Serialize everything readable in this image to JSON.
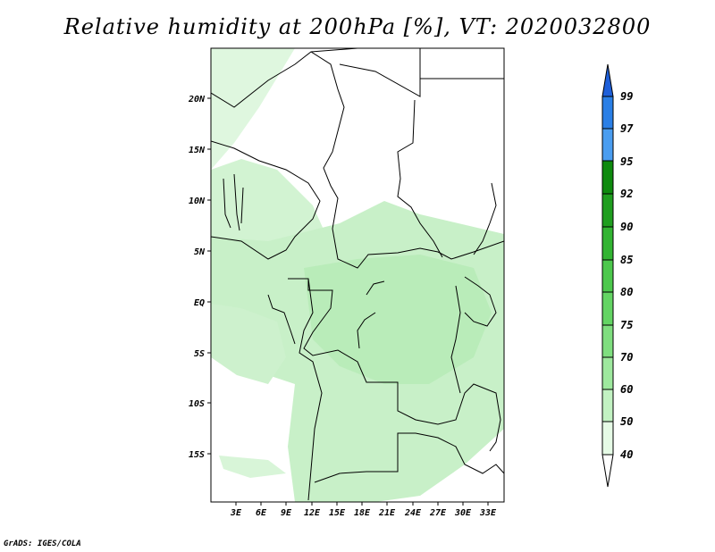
{
  "title": "Relative humidity at 200hPa [%], VT: 2020032800",
  "credit": "GrADS: IGES/COLA",
  "map": {
    "region": "Central Africa",
    "lat_labels": [
      "20N",
      "15N",
      "10N",
      "5N",
      "EQ",
      "5S",
      "10S",
      "15S"
    ],
    "lon_labels": [
      "3E",
      "6E",
      "9E",
      "12E",
      "15E",
      "18E",
      "21E",
      "24E",
      "27E",
      "30E",
      "33E"
    ]
  },
  "colorbar": {
    "labels": [
      "99",
      "97",
      "95",
      "92",
      "90",
      "85",
      "80",
      "75",
      "70",
      "60",
      "50",
      "40"
    ],
    "colors": [
      "#1e5fd9",
      "#2a7fe6",
      "#4a9df0",
      "#0e8a0e",
      "#1f9e1f",
      "#32b432",
      "#4cc84c",
      "#63d463",
      "#7fde7f",
      "#9ee89e",
      "#c2f2c2",
      "#e6fbe6"
    ]
  }
}
